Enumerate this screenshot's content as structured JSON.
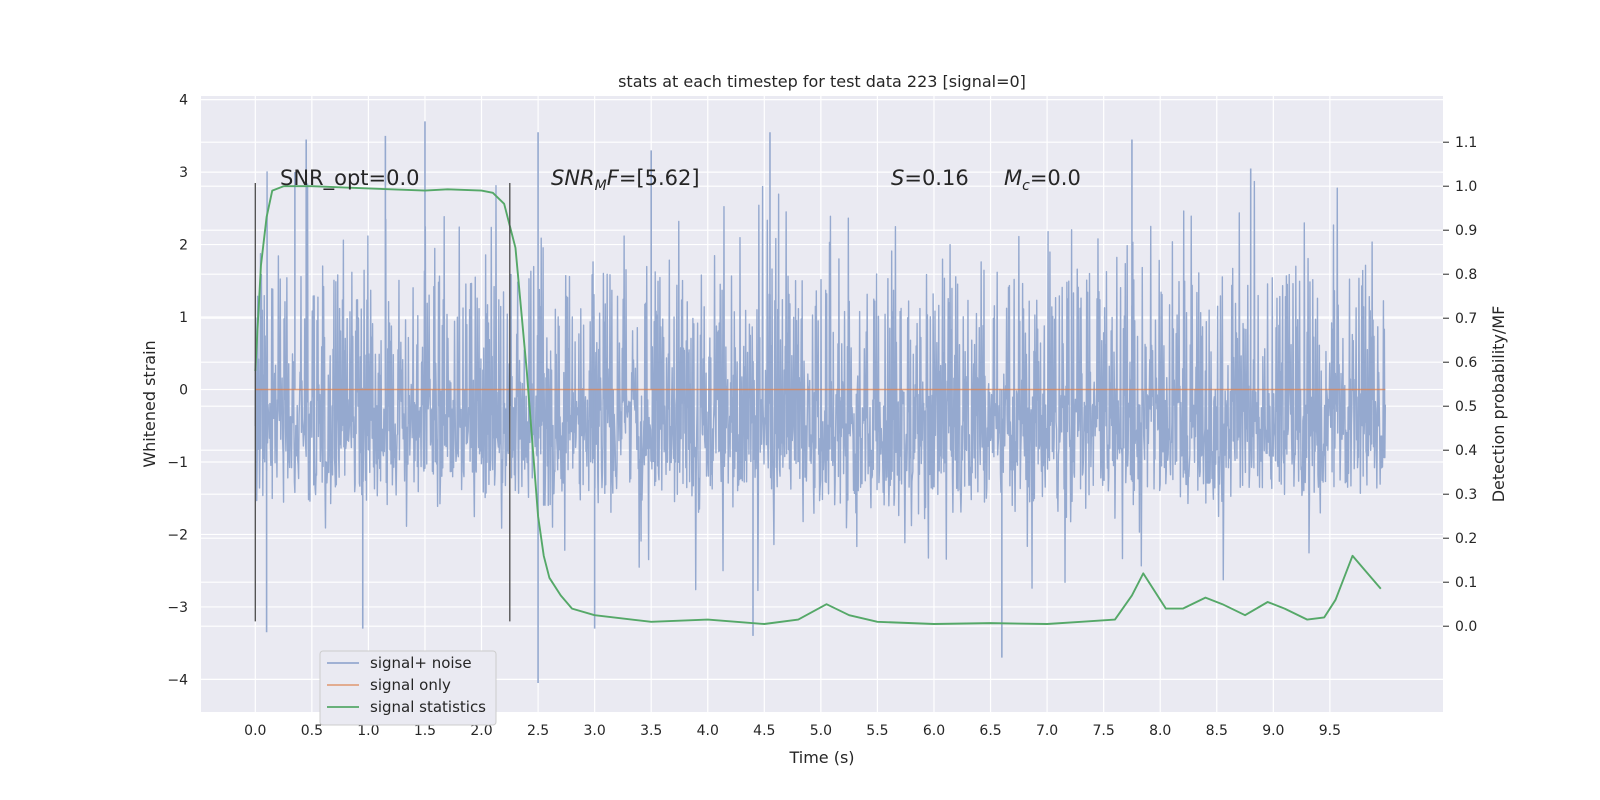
{
  "chart_data": {
    "type": "line",
    "title": "stats at each timestep for test data 223 [signal=0]",
    "xlabel": "Time (s)",
    "ylabel": "Whitened strain",
    "ylabel_right": "Detection probability/MF",
    "xlim": [
      -0.48,
      10.5
    ],
    "ylim": [
      -4.45,
      4.05
    ],
    "ylim_right": [
      -0.195,
      1.205
    ],
    "x_ticks": [
      "0.0",
      "0.5",
      "1.0",
      "1.5",
      "2.0",
      "2.5",
      "3.0",
      "3.5",
      "4.0",
      "4.5",
      "5.0",
      "5.5",
      "6.0",
      "6.5",
      "7.0",
      "7.5",
      "8.0",
      "8.5",
      "9.0",
      "9.5"
    ],
    "y_ticks": [
      "−4",
      "−3",
      "−2",
      "−1",
      "0",
      "1",
      "2",
      "3",
      "4"
    ],
    "y_ticks_right": [
      "0.0",
      "0.1",
      "0.2",
      "0.3",
      "0.4",
      "0.5",
      "0.6",
      "0.7",
      "0.8",
      "0.9",
      "1.0",
      "1.1"
    ],
    "grid": true,
    "legend_position": "lower-left",
    "annotations": {
      "snr_opt": "SNR_opt=0.0",
      "snr_mf_sym": "SNR",
      "snr_mf_sub": "M",
      "snr_mf_sym2": "F",
      "snr_mf_val": "=[5.62]",
      "s_sym": "S",
      "s_val": "=0.16",
      "mc_sym": "M",
      "mc_sub": "c",
      "mc_val": "=0.0"
    },
    "vertical_markers": [
      {
        "x": 0.0,
        "y_from": -3.2,
        "y_to": 2.85
      },
      {
        "x": 2.25,
        "y_from": -3.2,
        "y_to": 2.85
      }
    ],
    "series": [
      {
        "name": "signal+ noise",
        "color": "#95a9cf",
        "axis": "left",
        "kind": "noise",
        "x_range": [
          0.0,
          9.99
        ],
        "typical_band": [
          -1.4,
          1.6
        ],
        "peak_range": [
          -4.05,
          3.7
        ],
        "sample_peaks": [
          {
            "x": 0.1,
            "y": -3.35
          },
          {
            "x": 0.35,
            "y": 3.0
          },
          {
            "x": 0.45,
            "y": 3.45
          },
          {
            "x": 0.95,
            "y": -3.3
          },
          {
            "x": 1.15,
            "y": 3.5
          },
          {
            "x": 1.5,
            "y": 3.7
          },
          {
            "x": 2.5,
            "y": 3.55
          },
          {
            "x": 2.5,
            "y": -4.05
          },
          {
            "x": 3.0,
            "y": -3.3
          },
          {
            "x": 3.5,
            "y": 3.3
          },
          {
            "x": 4.4,
            "y": -3.4
          },
          {
            "x": 4.55,
            "y": 3.55
          },
          {
            "x": 6.6,
            "y": -3.7
          },
          {
            "x": 7.75,
            "y": 3.45
          },
          {
            "x": 8.8,
            "y": 3.05
          }
        ]
      },
      {
        "name": "signal only",
        "color": "#dd8452",
        "axis": "left",
        "x": [
          0.0,
          9.99
        ],
        "y": [
          0.0,
          0.0
        ]
      },
      {
        "name": "signal statistics",
        "color": "#55a868",
        "axis": "right",
        "x": [
          0.0,
          0.05,
          0.1,
          0.15,
          0.25,
          0.5,
          1.0,
          1.5,
          1.7,
          2.0,
          2.1,
          2.2,
          2.3,
          2.4,
          2.5,
          2.55,
          2.6,
          2.7,
          2.8,
          3.0,
          3.5,
          4.0,
          4.5,
          4.8,
          5.05,
          5.25,
          5.5,
          6.0,
          6.5,
          7.0,
          7.3,
          7.6,
          7.75,
          7.85,
          8.05,
          8.2,
          8.4,
          8.55,
          8.75,
          8.95,
          9.1,
          9.3,
          9.45,
          9.55,
          9.7,
          9.8,
          9.95
        ],
        "y": [
          0.58,
          0.82,
          0.93,
          0.99,
          1.0,
          1.0,
          0.995,
          0.99,
          0.993,
          0.99,
          0.985,
          0.96,
          0.86,
          0.58,
          0.25,
          0.16,
          0.11,
          0.07,
          0.04,
          0.025,
          0.01,
          0.015,
          0.005,
          0.015,
          0.05,
          0.025,
          0.01,
          0.005,
          0.007,
          0.005,
          0.01,
          0.015,
          0.07,
          0.12,
          0.04,
          0.04,
          0.065,
          0.05,
          0.025,
          0.055,
          0.04,
          0.015,
          0.02,
          0.06,
          0.16,
          0.13,
          0.085
        ]
      }
    ]
  }
}
